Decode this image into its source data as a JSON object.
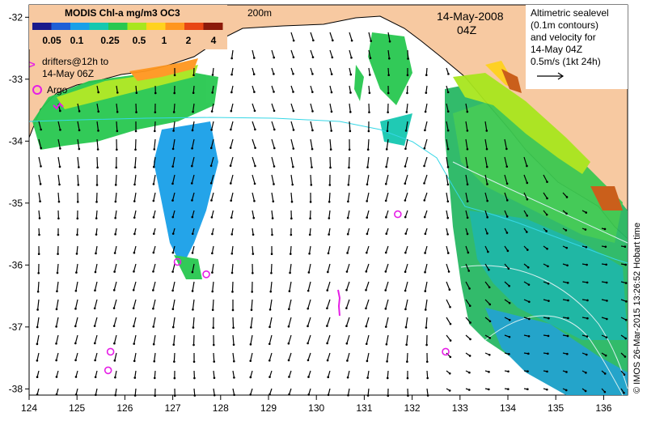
{
  "header": {
    "title": "MODIS Chl-a mg/m3 OC3",
    "colorbar_labels": [
      "0.05",
      "0.1",
      "0.25",
      "0.5",
      "1",
      "2",
      "4"
    ],
    "colorbar_colors": [
      "#1a1a8c",
      "#1f5fd6",
      "#19a0e8",
      "#15c8b0",
      "#28c850",
      "#a8e61e",
      "#ffd21e",
      "#ff961e",
      "#e84614",
      "#8c1a0a"
    ]
  },
  "labels": {
    "isobath": "200m",
    "date_line1": "14-May-2008",
    "date_line2": "04Z",
    "drifters_line1": "drifters@12h to",
    "drifters_line2": "14-May 06Z",
    "drifters_marker": ">",
    "argo": "Argo",
    "alt_line1": "Altimetric sealevel",
    "alt_line2": "(0.1m contours)",
    "alt_line3": "and velocity for",
    "alt_line4": "14-May 04Z",
    "alt_line5": "0.5m/s (1kt 24h)",
    "credit": "© IMOS 26-Mar-2015 13:26:52 Hobart time"
  },
  "axes": {
    "x_ticks": [
      "124",
      "125",
      "126",
      "127",
      "128",
      "129",
      "130",
      "131",
      "132",
      "133",
      "134",
      "135",
      "136"
    ],
    "y_ticks": [
      "-32",
      "-33",
      "-34",
      "-35",
      "-36",
      "-37",
      "-38"
    ]
  },
  "map_data": {
    "lon_range": [
      124,
      136.5
    ],
    "lat_range": [
      -38.1,
      -31.8
    ],
    "argo_floats": [
      {
        "lon": 127.1,
        "lat": -35.95
      },
      {
        "lon": 127.7,
        "lat": -36.15
      },
      {
        "lon": 131.7,
        "lat": -35.18
      },
      {
        "lon": 132.7,
        "lat": -37.4
      },
      {
        "lon": 125.7,
        "lat": -37.4
      },
      {
        "lon": 125.65,
        "lat": -37.7
      }
    ],
    "colors": {
      "land": "#f7c9a1",
      "coast": "#000000",
      "isobath": "#36d7e6",
      "argo": "#e61ee6",
      "drifter": "#e61ee6"
    }
  }
}
